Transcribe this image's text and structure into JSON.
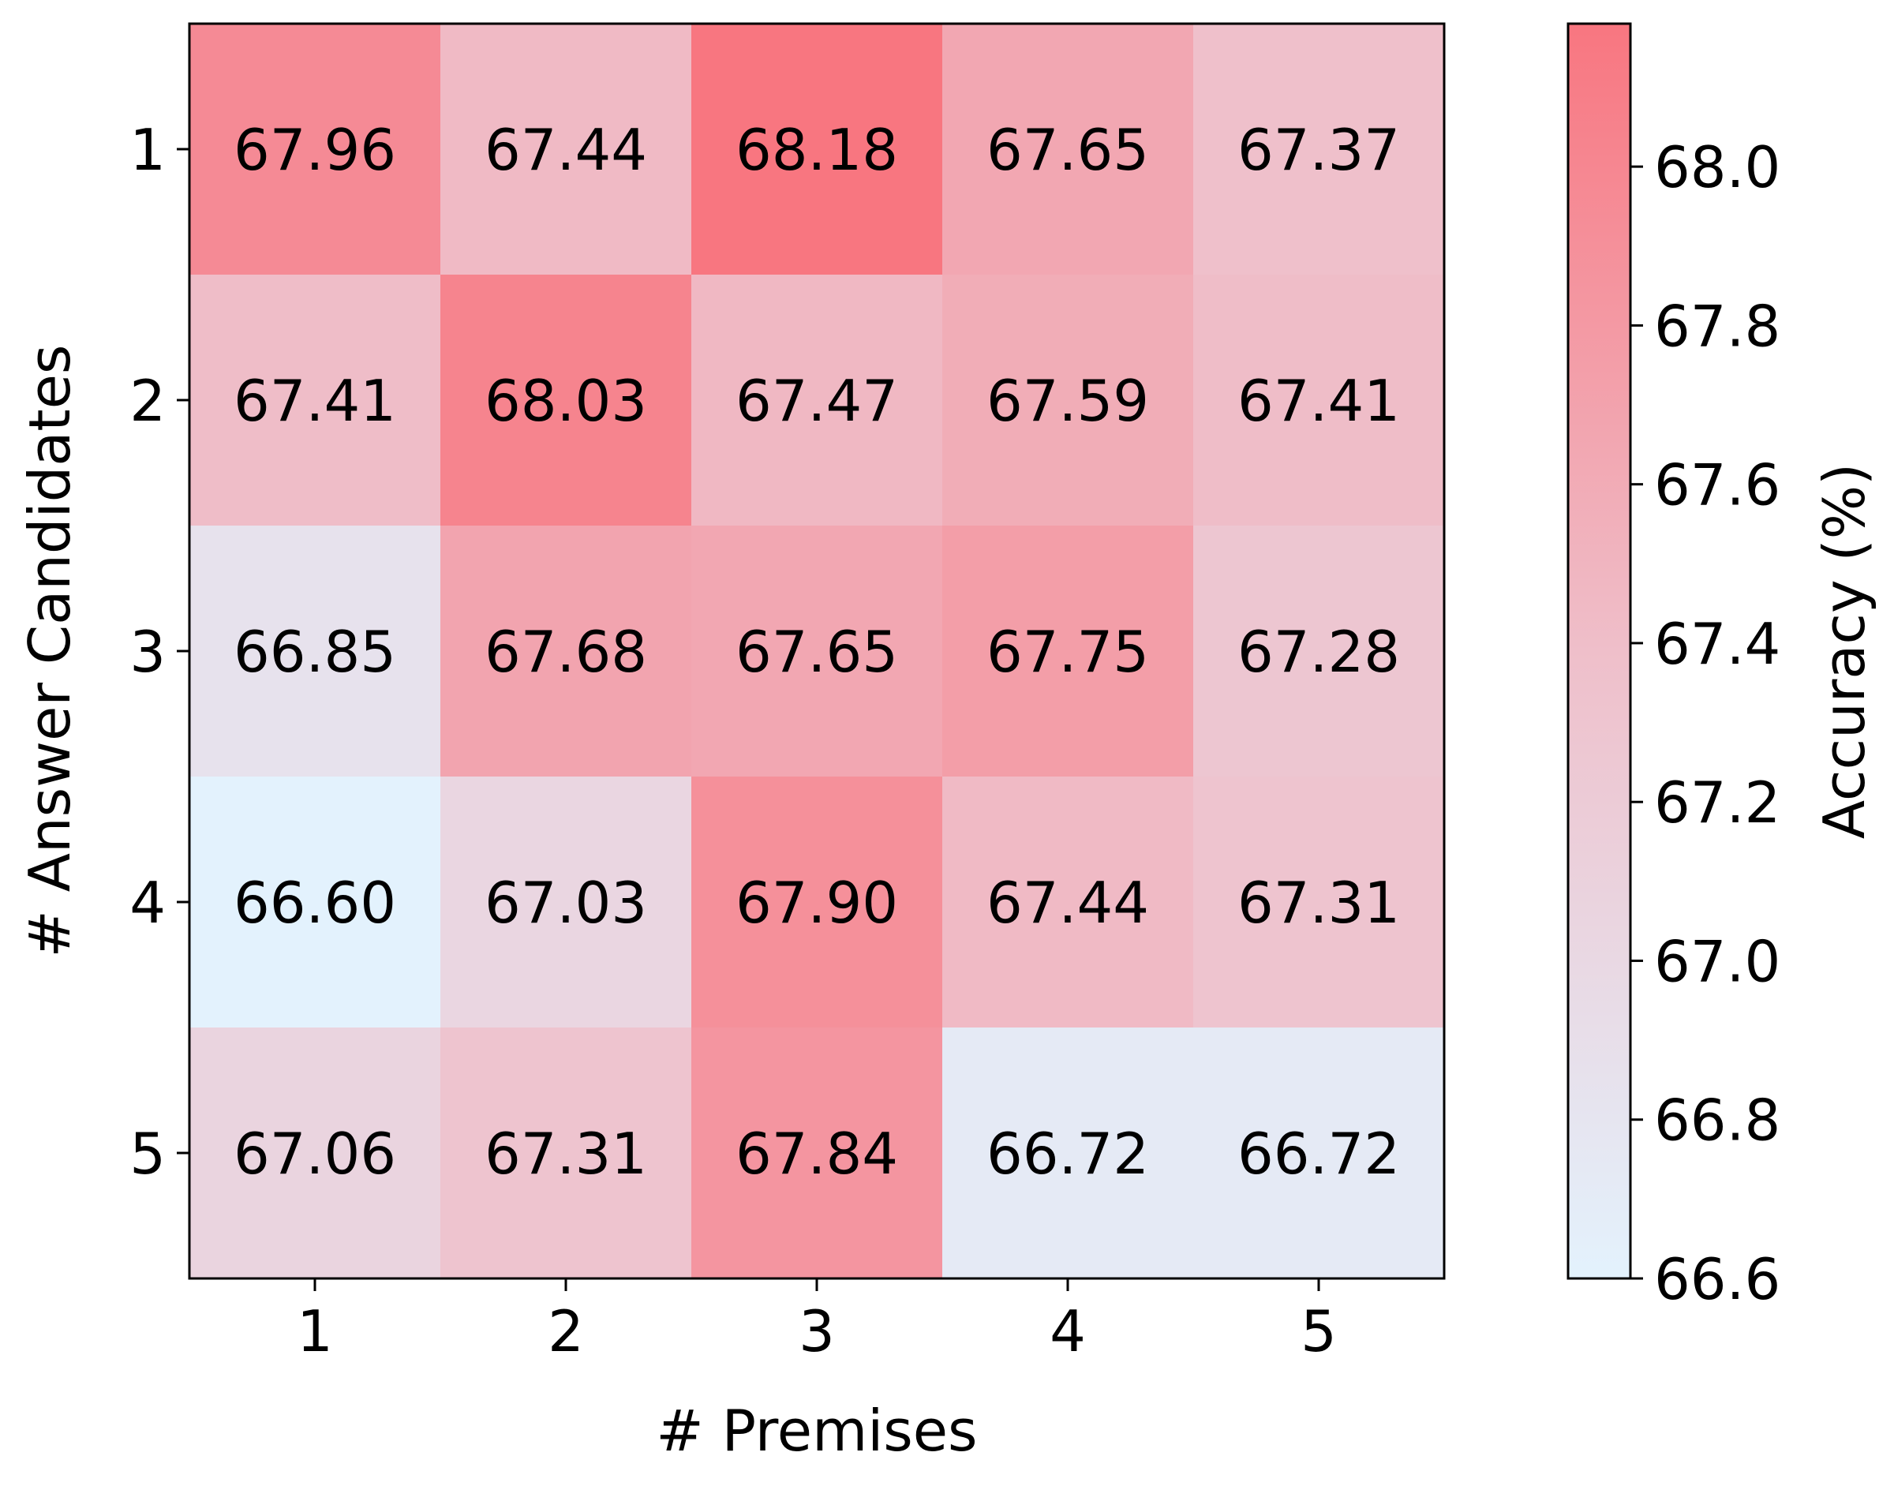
{
  "chart_data": {
    "type": "heatmap",
    "xlabel": "# Premises",
    "ylabel": "# Answer Candidates",
    "x_categories": [
      "1",
      "2",
      "3",
      "4",
      "5"
    ],
    "y_categories": [
      "1",
      "2",
      "3",
      "4",
      "5"
    ],
    "values": [
      [
        67.96,
        67.44,
        68.18,
        67.65,
        67.37
      ],
      [
        67.41,
        68.03,
        67.47,
        67.59,
        67.41
      ],
      [
        66.85,
        67.68,
        67.65,
        67.75,
        67.28
      ],
      [
        66.6,
        67.03,
        67.9,
        67.44,
        67.31
      ],
      [
        67.06,
        67.31,
        67.84,
        66.72,
        66.72
      ]
    ],
    "value_labels": [
      [
        "67.96",
        "67.44",
        "68.18",
        "67.65",
        "67.37"
      ],
      [
        "67.41",
        "68.03",
        "67.47",
        "67.59",
        "67.41"
      ],
      [
        "66.85",
        "67.68",
        "67.65",
        "67.75",
        "67.28"
      ],
      [
        "66.60",
        "67.03",
        "67.90",
        "67.44",
        "67.31"
      ],
      [
        "67.06",
        "67.31",
        "67.84",
        "66.72",
        "66.72"
      ]
    ],
    "colorbar": {
      "label": "Accuracy (%)",
      "min": 66.6,
      "max": 68.18,
      "ticks": [
        66.6,
        66.8,
        67.0,
        67.2,
        67.4,
        67.6,
        67.8,
        68.0
      ],
      "tick_labels": [
        "66.6",
        "66.8",
        "67.0",
        "67.2",
        "67.4",
        "67.6",
        "67.8",
        "68.0"
      ],
      "color_low": "#e3f2fd",
      "color_mid": "#efbfca",
      "color_high": "#f87680"
    },
    "grid": false,
    "legend": "none"
  }
}
